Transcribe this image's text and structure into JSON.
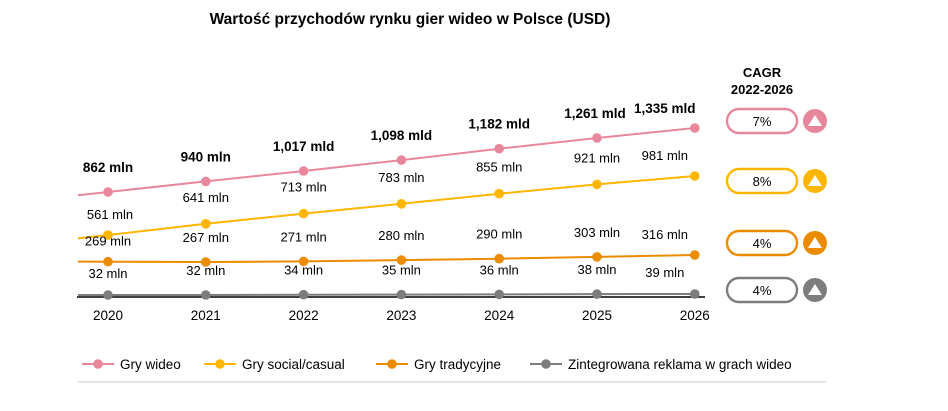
{
  "chart_data": {
    "type": "line",
    "title": "Wartość przychodów rynku gier wideo w Polsce (USD)",
    "x": [
      "2020",
      "2021",
      "2022",
      "2023",
      "2024",
      "2025",
      "2026"
    ],
    "series": [
      {
        "name": "Gry wideo",
        "color": "#e8879b",
        "values_musd": [
          862,
          940,
          1017,
          1098,
          1182,
          1261,
          1335
        ],
        "labels": [
          "862 mln",
          "940 mln",
          "1,017 mld",
          "1,098 mld",
          "1,182 mld",
          "1,261 mld",
          "1,335 mld"
        ],
        "cagr": "7%",
        "trend": "up"
      },
      {
        "name": "Gry social/casual",
        "color": "#ffb600",
        "values_musd": [
          561,
          641,
          713,
          783,
          855,
          921,
          981
        ],
        "labels": [
          "561 mln",
          "641 mln",
          "713 mln",
          "783 mln",
          "855 mln",
          "921 mln",
          "981 mln"
        ],
        "cagr": "8%",
        "trend": "up"
      },
      {
        "name": "Gry tradycyjne",
        "color": "#eb8c00",
        "values_musd": [
          269,
          267,
          271,
          280,
          290,
          303,
          316
        ],
        "labels": [
          "269 mln",
          "267 mln",
          "271 mln",
          "280 mln",
          "290 mln",
          "303 mln",
          "316 mln"
        ],
        "cagr": "4%",
        "trend": "up"
      },
      {
        "name": "Zintegrowana reklama w grach wideo",
        "color": "#7d7d7d",
        "values_musd": [
          32,
          32,
          34,
          35,
          36,
          38,
          39
        ],
        "labels": [
          "32 mln",
          "32 mln",
          "34 mln",
          "35 mln",
          "36 mln",
          "38 mln",
          "39 mln"
        ],
        "cagr": "4%",
        "trend": "up"
      }
    ],
    "cagr_title": [
      "CAGR",
      "2022-2026"
    ],
    "legend_position": "bottom",
    "grid": false
  }
}
